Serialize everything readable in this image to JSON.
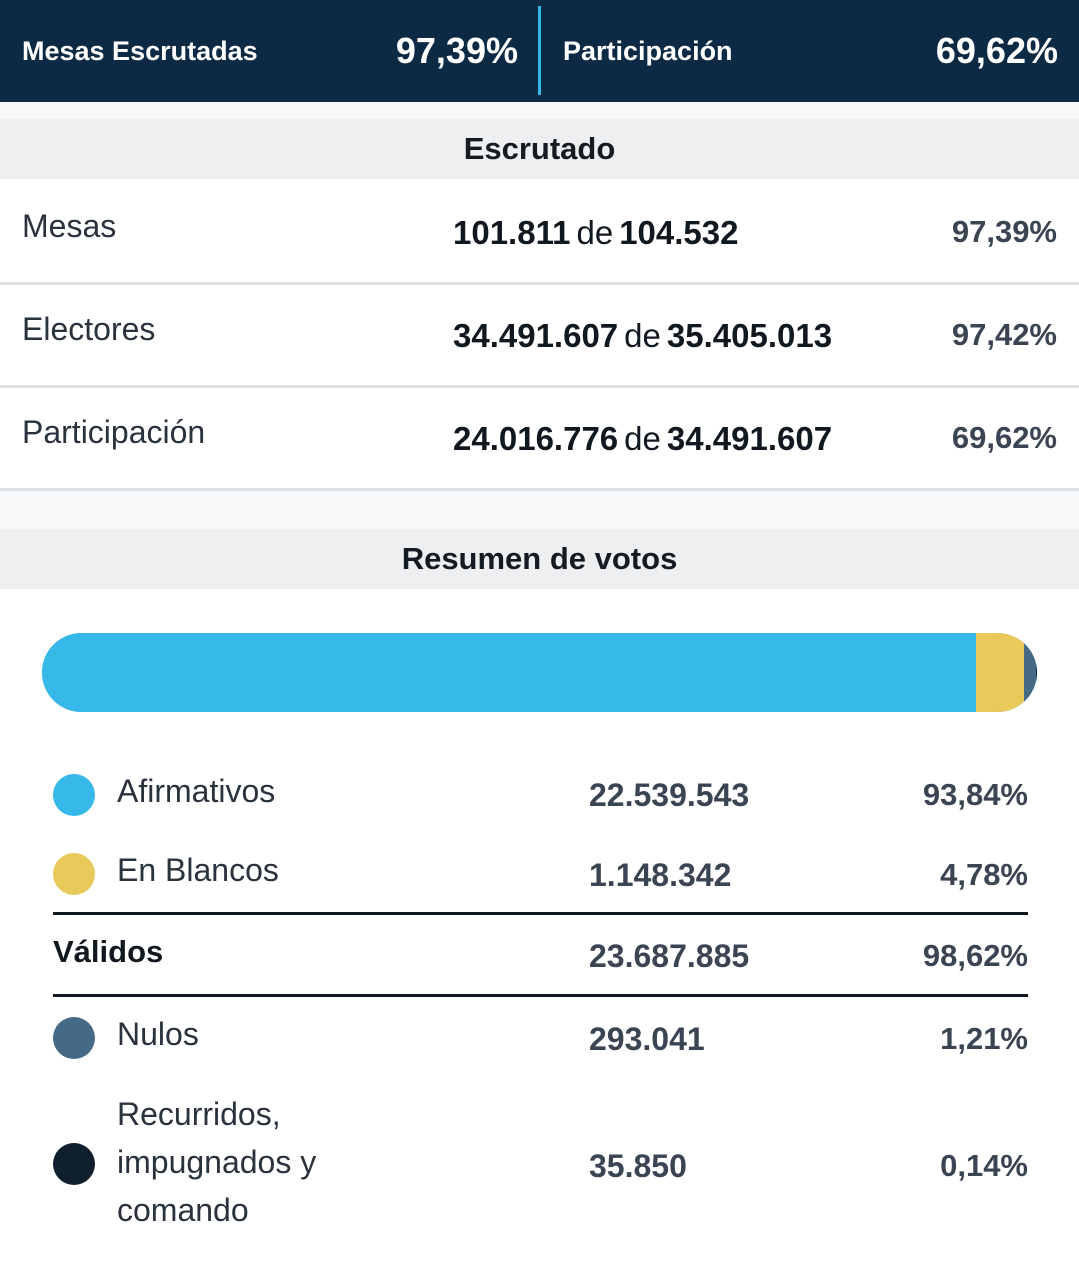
{
  "header": {
    "mesas_label": "Mesas Escrutadas",
    "mesas_pct": "97,39%",
    "participacion_label": "Participación",
    "participacion_pct": "69,62%"
  },
  "escrutado": {
    "title": "Escrutado",
    "rows": [
      {
        "label": "Mesas",
        "value": "101.811",
        "de": "de",
        "total": "104.532",
        "pct": "97,39%"
      },
      {
        "label": "Electores",
        "value": "34.491.607",
        "de": "de",
        "total": "35.405.013",
        "pct": "97,42%"
      },
      {
        "label": "Participación",
        "value": "24.016.776",
        "de": "de",
        "total": "34.491.607",
        "pct": "69,62%"
      }
    ]
  },
  "resumen": {
    "title": "Resumen de votos",
    "bar": [
      {
        "share": 93.84,
        "color": "#36b8e8"
      },
      {
        "share": 4.78,
        "color": "#e8c95a"
      },
      {
        "share": 1.21,
        "color": "#456a86"
      },
      {
        "share": 0.14,
        "color": "#0f1f2e"
      }
    ],
    "afirmativos": {
      "label": "Afirmativos",
      "count": "22.539.543",
      "pct": "93,84%",
      "color": "#36b8e8"
    },
    "blancos": {
      "label": "En Blancos",
      "count": "1.148.342",
      "pct": "4,78%",
      "color": "#e8c95a"
    },
    "validos": {
      "label": "Válidos",
      "count": "23.687.885",
      "pct": "98,62%"
    },
    "nulos": {
      "label": "Nulos",
      "count": "293.041",
      "pct": "1,21%",
      "color": "#456a86"
    },
    "recurridos": {
      "label": "Recurridos, impugnados y comando",
      "count": "35.850",
      "pct": "0,14%",
      "color": "#0f1f2e"
    }
  }
}
